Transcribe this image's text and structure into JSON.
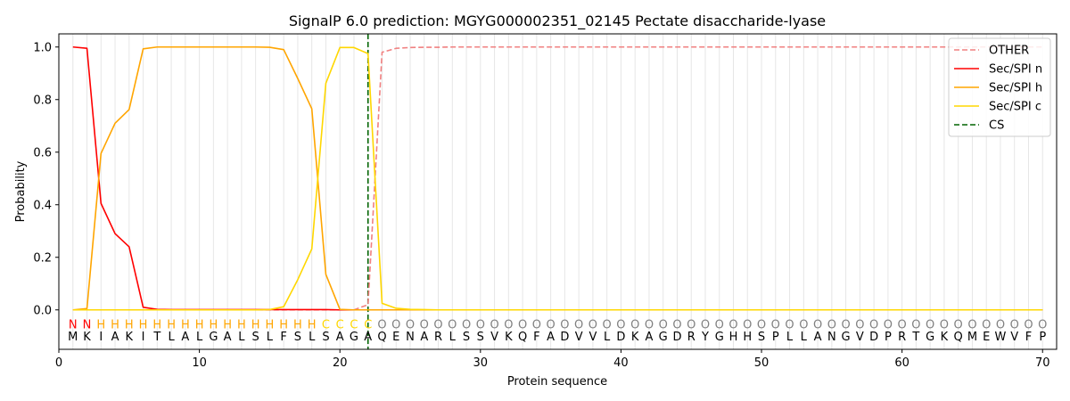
{
  "chart_data": {
    "type": "line",
    "title": "SignalP 6.0 prediction: MGYG000002351_02145 Pectate disaccharide-lyase",
    "xlabel": "Protein sequence",
    "ylabel": "Probability",
    "xlim": [
      0,
      71
    ],
    "ylim": [
      -0.15,
      1.05
    ],
    "x_ticks": [
      0,
      10,
      20,
      30,
      40,
      50,
      60,
      70
    ],
    "y_ticks": [
      0.0,
      0.2,
      0.4,
      0.6,
      0.8,
      1.0
    ],
    "x_tick_labels": [
      "0",
      "10",
      "20",
      "30",
      "40",
      "50",
      "60",
      "70"
    ],
    "y_tick_labels": [
      "0.0",
      "0.2",
      "0.4",
      "0.6",
      "0.8",
      "1.0"
    ],
    "legend_position": "top-right",
    "sequence": [
      "M",
      "K",
      "I",
      "A",
      "K",
      "I",
      "T",
      "L",
      "A",
      "L",
      "G",
      "A",
      "L",
      "S",
      "L",
      "F",
      "S",
      "L",
      "S",
      "A",
      "G",
      "A",
      "Q",
      "E",
      "N",
      "A",
      "R",
      "L",
      "S",
      "S",
      "V",
      "K",
      "Q",
      "F",
      "A",
      "D",
      "V",
      "V",
      "L",
      "D",
      "K",
      "A",
      "G",
      "D",
      "R",
      "Y",
      "G",
      "H",
      "H",
      "S",
      "P",
      "L",
      "L",
      "A",
      "N",
      "G",
      "V",
      "D",
      "P",
      "R",
      "T",
      "G",
      "K",
      "Q",
      "M",
      "E",
      "W",
      "V",
      "F",
      "P"
    ],
    "region_labels": [
      "N",
      "N",
      "H",
      "H",
      "H",
      "H",
      "H",
      "H",
      "H",
      "H",
      "H",
      "H",
      "H",
      "H",
      "H",
      "H",
      "H",
      "H",
      "C",
      "C",
      "C",
      "C",
      "O",
      "O",
      "O",
      "O",
      "O",
      "O",
      "O",
      "O",
      "O",
      "O",
      "O",
      "O",
      "O",
      "O",
      "O",
      "O",
      "O",
      "O",
      "O",
      "O",
      "O",
      "O",
      "O",
      "O",
      "O",
      "O",
      "O",
      "O",
      "O",
      "O",
      "O",
      "O",
      "O",
      "O",
      "O",
      "O",
      "O",
      "O",
      "O",
      "O",
      "O",
      "O",
      "O",
      "O",
      "O",
      "O",
      "O",
      "O"
    ],
    "region_colors": {
      "N": "#ff0000",
      "H": "#ffa500",
      "C": "#ffd700",
      "O": "#808080"
    },
    "cleavage_site": 22,
    "series": [
      {
        "name": "OTHER",
        "color": "#f08080",
        "dash": true,
        "values": [
          0.0,
          0.0,
          0.0,
          0.0,
          0.0,
          0.0,
          0.0,
          0.0,
          0.0,
          0.0,
          0.0,
          0.0,
          0.0,
          0.0,
          0.0,
          0.0,
          0.0,
          0.0,
          0.0,
          0.0,
          0.0,
          0.02,
          0.98,
          0.995,
          0.998,
          0.999,
          0.999,
          1.0,
          1.0,
          1.0,
          1.0,
          1.0,
          1.0,
          1.0,
          1.0,
          1.0,
          1.0,
          1.0,
          1.0,
          1.0,
          1.0,
          1.0,
          1.0,
          1.0,
          1.0,
          1.0,
          1.0,
          1.0,
          1.0,
          1.0,
          1.0,
          1.0,
          1.0,
          1.0,
          1.0,
          1.0,
          1.0,
          1.0,
          1.0,
          1.0,
          1.0,
          1.0,
          1.0,
          1.0,
          1.0,
          1.0,
          1.0,
          1.0,
          1.0,
          1.0
        ]
      },
      {
        "name": "Sec/SPI n",
        "color": "#ff0000",
        "dash": false,
        "values": [
          1.0,
          0.995,
          0.405,
          0.29,
          0.24,
          0.01,
          0.002,
          0.001,
          0.001,
          0.001,
          0.001,
          0.001,
          0.001,
          0.001,
          0.001,
          0.001,
          0.001,
          0.001,
          0.001,
          0.0,
          0.0,
          0.0,
          0.0,
          0.0,
          0.0,
          0.0,
          0.0,
          0.0,
          0.0,
          0.0,
          0.0,
          0.0,
          0.0,
          0.0,
          0.0,
          0.0,
          0.0,
          0.0,
          0.0,
          0.0,
          0.0,
          0.0,
          0.0,
          0.0,
          0.0,
          0.0,
          0.0,
          0.0,
          0.0,
          0.0,
          0.0,
          0.0,
          0.0,
          0.0,
          0.0,
          0.0,
          0.0,
          0.0,
          0.0,
          0.0,
          0.0,
          0.0,
          0.0,
          0.0,
          0.0,
          0.0,
          0.0,
          0.0,
          0.0,
          0.0
        ]
      },
      {
        "name": "Sec/SPI h",
        "color": "#ffa500",
        "dash": false,
        "values": [
          0.0,
          0.005,
          0.595,
          0.71,
          0.762,
          0.993,
          1.0,
          1.0,
          1.0,
          1.0,
          1.0,
          1.0,
          1.0,
          1.0,
          0.999,
          0.99,
          0.88,
          0.765,
          0.135,
          0.002,
          0.0,
          0.0,
          0.0,
          0.0,
          0.0,
          0.0,
          0.0,
          0.0,
          0.0,
          0.0,
          0.0,
          0.0,
          0.0,
          0.0,
          0.0,
          0.0,
          0.0,
          0.0,
          0.0,
          0.0,
          0.0,
          0.0,
          0.0,
          0.0,
          0.0,
          0.0,
          0.0,
          0.0,
          0.0,
          0.0,
          0.0,
          0.0,
          0.0,
          0.0,
          0.0,
          0.0,
          0.0,
          0.0,
          0.0,
          0.0,
          0.0,
          0.0,
          0.0,
          0.0,
          0.0,
          0.0,
          0.0,
          0.0,
          0.0,
          0.0
        ]
      },
      {
        "name": "Sec/SPI c",
        "color": "#ffd700",
        "dash": false,
        "values": [
          0.0,
          0.0,
          0.0,
          0.0,
          0.0,
          0.0,
          0.0,
          0.0,
          0.0,
          0.0,
          0.0,
          0.0,
          0.0,
          0.0,
          0.001,
          0.012,
          0.115,
          0.232,
          0.862,
          0.998,
          0.998,
          0.975,
          0.025,
          0.006,
          0.002,
          0.001,
          0.0,
          0.0,
          0.0,
          0.0,
          0.0,
          0.0,
          0.0,
          0.0,
          0.0,
          0.0,
          0.0,
          0.0,
          0.0,
          0.0,
          0.0,
          0.0,
          0.0,
          0.0,
          0.0,
          0.0,
          0.0,
          0.0,
          0.0,
          0.0,
          0.0,
          0.0,
          0.0,
          0.0,
          0.0,
          0.0,
          0.0,
          0.0,
          0.0,
          0.0,
          0.0,
          0.0,
          0.0,
          0.0,
          0.0,
          0.0,
          0.0,
          0.0,
          0.0,
          0.0
        ]
      }
    ],
    "legend": [
      {
        "name": "OTHER",
        "color": "#f08080",
        "dash": true
      },
      {
        "name": "Sec/SPI n",
        "color": "#ff0000",
        "dash": false
      },
      {
        "name": "Sec/SPI h",
        "color": "#ffa500",
        "dash": false
      },
      {
        "name": "Sec/SPI c",
        "color": "#ffd700",
        "dash": false
      },
      {
        "name": "CS",
        "color": "#006400",
        "dash": true
      }
    ]
  }
}
